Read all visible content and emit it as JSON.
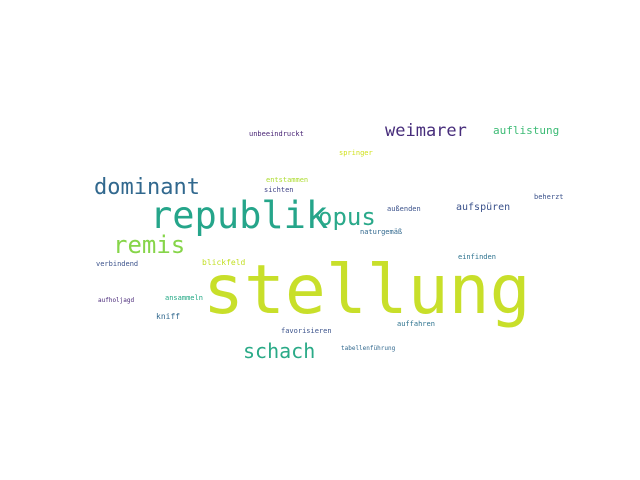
{
  "words": [
    {
      "text": "stellung",
      "color": "#c8df2a"
    },
    {
      "text": "republik",
      "color": "#25a58a"
    },
    {
      "text": "opus",
      "color": "#2aa98a"
    },
    {
      "text": "remis",
      "color": "#86d549"
    },
    {
      "text": "dominant",
      "color": "#31688e"
    },
    {
      "text": "schach",
      "color": "#2aaa87"
    },
    {
      "text": "weimarer",
      "color": "#472d7b"
    },
    {
      "text": "auflistung",
      "color": "#3cbb75"
    },
    {
      "text": "unbeeindruckt",
      "color": "#482475"
    },
    {
      "text": "springer",
      "color": "#d0e11c"
    },
    {
      "text": "entstammen",
      "color": "#addc30"
    },
    {
      "text": "sichten",
      "color": "#414487"
    },
    {
      "text": "außenden",
      "color": "#3b528b"
    },
    {
      "text": "aufspüren",
      "color": "#3b528b"
    },
    {
      "text": "beherzt",
      "color": "#3b528b"
    },
    {
      "text": "naturgemäß",
      "color": "#31688e"
    },
    {
      "text": "einfinden",
      "color": "#2c728e"
    },
    {
      "text": "verbindend",
      "color": "#3b528b"
    },
    {
      "text": "blickfeld",
      "color": "#c2df23"
    },
    {
      "text": "aufholjagd",
      "color": "#482878"
    },
    {
      "text": "ansammeln",
      "color": "#22a884"
    },
    {
      "text": "kniff",
      "color": "#31688e"
    },
    {
      "text": "favorisieren",
      "color": "#3b528b"
    },
    {
      "text": "auffahren",
      "color": "#2c728e"
    },
    {
      "text": "tabellenführung",
      "color": "#31688e"
    }
  ]
}
